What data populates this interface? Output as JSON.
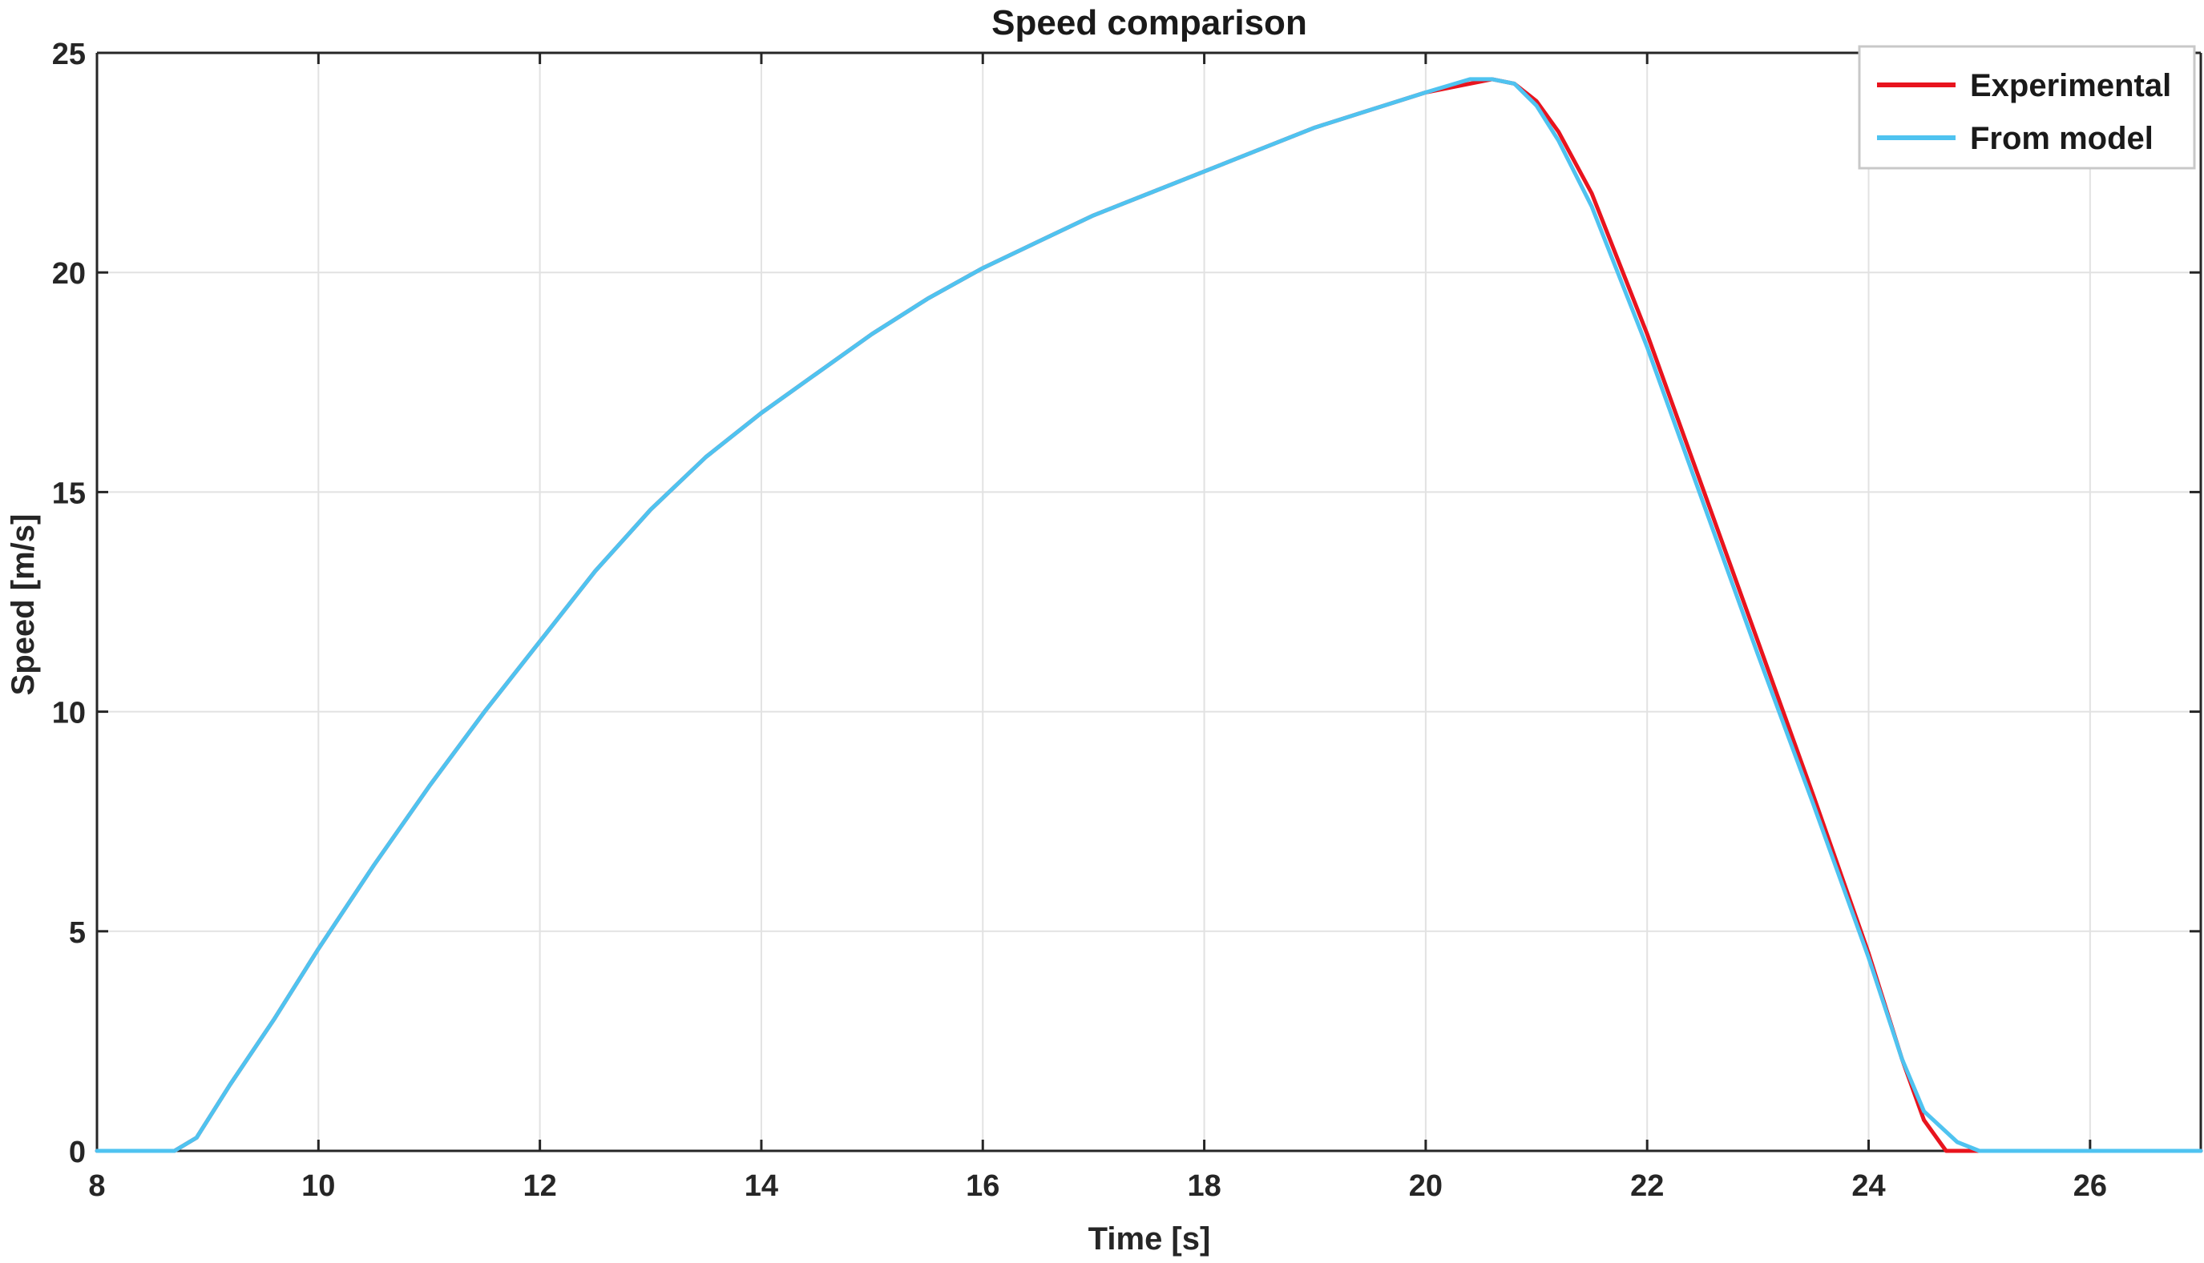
{
  "chart_data": {
    "type": "line",
    "title": "Speed comparison",
    "xlabel": "Time [s]",
    "ylabel": "Speed [m/s]",
    "xlim": [
      8,
      27
    ],
    "ylim": [
      0,
      25
    ],
    "xticks": [
      8,
      10,
      12,
      14,
      16,
      18,
      20,
      22,
      24,
      26
    ],
    "yticks": [
      0,
      5,
      10,
      15,
      20,
      25
    ],
    "grid": true,
    "legend_position": "top-right",
    "series": [
      {
        "name": "Experimental",
        "color": "#e8141e",
        "x": [
          8.0,
          8.7,
          8.9,
          9.2,
          9.6,
          10.0,
          10.5,
          11.0,
          11.5,
          12.0,
          12.5,
          13.0,
          13.5,
          14.0,
          14.5,
          15.0,
          15.5,
          16.0,
          16.5,
          17.0,
          17.5,
          18.0,
          18.5,
          19.0,
          19.5,
          20.0,
          20.4,
          20.6,
          20.8,
          21.0,
          21.2,
          21.5,
          22.0,
          22.5,
          23.0,
          23.5,
          24.0,
          24.3,
          24.5,
          24.7,
          25.0,
          27.0
        ],
        "y": [
          0.0,
          0.0,
          0.3,
          1.5,
          3.0,
          4.6,
          6.5,
          8.3,
          10.0,
          11.6,
          13.2,
          14.6,
          15.8,
          16.8,
          17.7,
          18.6,
          19.4,
          20.1,
          20.7,
          21.3,
          21.8,
          22.3,
          22.8,
          23.3,
          23.7,
          24.1,
          24.3,
          24.4,
          24.3,
          23.9,
          23.2,
          21.8,
          18.6,
          15.1,
          11.6,
          8.1,
          4.5,
          2.1,
          0.7,
          0.0,
          0.0,
          0.0
        ]
      },
      {
        "name": "From model",
        "color": "#4fc3f0",
        "x": [
          8.0,
          8.7,
          8.9,
          9.2,
          9.6,
          10.0,
          10.5,
          11.0,
          11.5,
          12.0,
          12.5,
          13.0,
          13.5,
          14.0,
          14.5,
          15.0,
          15.5,
          16.0,
          16.5,
          17.0,
          17.5,
          18.0,
          18.5,
          19.0,
          19.5,
          20.0,
          20.4,
          20.6,
          20.8,
          21.0,
          21.2,
          21.5,
          22.0,
          22.5,
          23.0,
          23.5,
          24.0,
          24.3,
          24.5,
          24.8,
          25.0,
          27.0
        ],
        "y": [
          0.0,
          0.0,
          0.3,
          1.5,
          3.0,
          4.6,
          6.5,
          8.3,
          10.0,
          11.6,
          13.2,
          14.6,
          15.8,
          16.8,
          17.7,
          18.6,
          19.4,
          20.1,
          20.7,
          21.3,
          21.8,
          22.3,
          22.8,
          23.3,
          23.7,
          24.1,
          24.4,
          24.4,
          24.3,
          23.8,
          23.0,
          21.5,
          18.3,
          14.8,
          11.3,
          7.9,
          4.4,
          2.1,
          0.9,
          0.2,
          0.0,
          0.0
        ]
      }
    ]
  }
}
